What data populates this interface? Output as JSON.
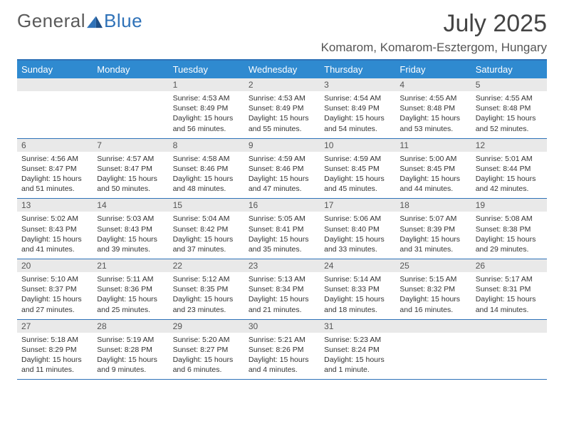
{
  "brand": {
    "part1": "General",
    "part2": "Blue"
  },
  "title": "July 2025",
  "location": "Komarom, Komarom-Esztergom, Hungary",
  "colors": {
    "accent": "#2f8ad0",
    "rule": "#2f72b8",
    "dayBg": "#e9e9e9",
    "text": "#333"
  },
  "columns": [
    "Sunday",
    "Monday",
    "Tuesday",
    "Wednesday",
    "Thursday",
    "Friday",
    "Saturday"
  ],
  "startWeekday": 2,
  "days": [
    {
      "n": 1,
      "sunrise": "4:53 AM",
      "sunset": "8:49 PM",
      "daylight": "15 hours and 56 minutes."
    },
    {
      "n": 2,
      "sunrise": "4:53 AM",
      "sunset": "8:49 PM",
      "daylight": "15 hours and 55 minutes."
    },
    {
      "n": 3,
      "sunrise": "4:54 AM",
      "sunset": "8:49 PM",
      "daylight": "15 hours and 54 minutes."
    },
    {
      "n": 4,
      "sunrise": "4:55 AM",
      "sunset": "8:48 PM",
      "daylight": "15 hours and 53 minutes."
    },
    {
      "n": 5,
      "sunrise": "4:55 AM",
      "sunset": "8:48 PM",
      "daylight": "15 hours and 52 minutes."
    },
    {
      "n": 6,
      "sunrise": "4:56 AM",
      "sunset": "8:47 PM",
      "daylight": "15 hours and 51 minutes."
    },
    {
      "n": 7,
      "sunrise": "4:57 AM",
      "sunset": "8:47 PM",
      "daylight": "15 hours and 50 minutes."
    },
    {
      "n": 8,
      "sunrise": "4:58 AM",
      "sunset": "8:46 PM",
      "daylight": "15 hours and 48 minutes."
    },
    {
      "n": 9,
      "sunrise": "4:59 AM",
      "sunset": "8:46 PM",
      "daylight": "15 hours and 47 minutes."
    },
    {
      "n": 10,
      "sunrise": "4:59 AM",
      "sunset": "8:45 PM",
      "daylight": "15 hours and 45 minutes."
    },
    {
      "n": 11,
      "sunrise": "5:00 AM",
      "sunset": "8:45 PM",
      "daylight": "15 hours and 44 minutes."
    },
    {
      "n": 12,
      "sunrise": "5:01 AM",
      "sunset": "8:44 PM",
      "daylight": "15 hours and 42 minutes."
    },
    {
      "n": 13,
      "sunrise": "5:02 AM",
      "sunset": "8:43 PM",
      "daylight": "15 hours and 41 minutes."
    },
    {
      "n": 14,
      "sunrise": "5:03 AM",
      "sunset": "8:43 PM",
      "daylight": "15 hours and 39 minutes."
    },
    {
      "n": 15,
      "sunrise": "5:04 AM",
      "sunset": "8:42 PM",
      "daylight": "15 hours and 37 minutes."
    },
    {
      "n": 16,
      "sunrise": "5:05 AM",
      "sunset": "8:41 PM",
      "daylight": "15 hours and 35 minutes."
    },
    {
      "n": 17,
      "sunrise": "5:06 AM",
      "sunset": "8:40 PM",
      "daylight": "15 hours and 33 minutes."
    },
    {
      "n": 18,
      "sunrise": "5:07 AM",
      "sunset": "8:39 PM",
      "daylight": "15 hours and 31 minutes."
    },
    {
      "n": 19,
      "sunrise": "5:08 AM",
      "sunset": "8:38 PM",
      "daylight": "15 hours and 29 minutes."
    },
    {
      "n": 20,
      "sunrise": "5:10 AM",
      "sunset": "8:37 PM",
      "daylight": "15 hours and 27 minutes."
    },
    {
      "n": 21,
      "sunrise": "5:11 AM",
      "sunset": "8:36 PM",
      "daylight": "15 hours and 25 minutes."
    },
    {
      "n": 22,
      "sunrise": "5:12 AM",
      "sunset": "8:35 PM",
      "daylight": "15 hours and 23 minutes."
    },
    {
      "n": 23,
      "sunrise": "5:13 AM",
      "sunset": "8:34 PM",
      "daylight": "15 hours and 21 minutes."
    },
    {
      "n": 24,
      "sunrise": "5:14 AM",
      "sunset": "8:33 PM",
      "daylight": "15 hours and 18 minutes."
    },
    {
      "n": 25,
      "sunrise": "5:15 AM",
      "sunset": "8:32 PM",
      "daylight": "15 hours and 16 minutes."
    },
    {
      "n": 26,
      "sunrise": "5:17 AM",
      "sunset": "8:31 PM",
      "daylight": "15 hours and 14 minutes."
    },
    {
      "n": 27,
      "sunrise": "5:18 AM",
      "sunset": "8:29 PM",
      "daylight": "15 hours and 11 minutes."
    },
    {
      "n": 28,
      "sunrise": "5:19 AM",
      "sunset": "8:28 PM",
      "daylight": "15 hours and 9 minutes."
    },
    {
      "n": 29,
      "sunrise": "5:20 AM",
      "sunset": "8:27 PM",
      "daylight": "15 hours and 6 minutes."
    },
    {
      "n": 30,
      "sunrise": "5:21 AM",
      "sunset": "8:26 PM",
      "daylight": "15 hours and 4 minutes."
    },
    {
      "n": 31,
      "sunrise": "5:23 AM",
      "sunset": "8:24 PM",
      "daylight": "15 hours and 1 minute."
    }
  ],
  "labels": {
    "sunrise": "Sunrise:",
    "sunset": "Sunset:",
    "daylight": "Daylight:"
  }
}
